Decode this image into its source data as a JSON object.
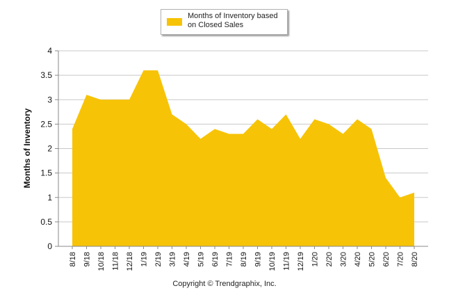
{
  "chart_data": {
    "type": "area",
    "title": "",
    "xlabel": "",
    "ylabel": "Months of Inventory",
    "ylim": [
      0,
      4
    ],
    "yticks": [
      "0",
      "0.5",
      "1",
      "1.5",
      "2",
      "2.5",
      "3",
      "3.5",
      "4"
    ],
    "grid": true,
    "legend_position": "top-center",
    "categories": [
      "8/18",
      "9/18",
      "10/18",
      "11/18",
      "12/18",
      "1/19",
      "2/19",
      "3/19",
      "4/19",
      "5/19",
      "6/19",
      "7/19",
      "8/19",
      "9/19",
      "10/19",
      "11/19",
      "12/19",
      "1/20",
      "2/20",
      "3/20",
      "4/20",
      "5/20",
      "6/20",
      "7/20",
      "8/20"
    ],
    "series": [
      {
        "name": "Months of Inventory based on Closed Sales",
        "color": "#f7c306",
        "values": [
          2.4,
          3.1,
          3.0,
          3.0,
          3.0,
          3.6,
          3.6,
          2.7,
          2.5,
          2.2,
          2.4,
          2.3,
          2.3,
          2.6,
          2.4,
          2.7,
          2.2,
          2.6,
          2.5,
          2.3,
          2.6,
          2.4,
          1.4,
          1.0,
          1.1
        ]
      }
    ]
  },
  "legend": {
    "label": "Months of Inventory based on Closed Sales",
    "color": "#f7c306"
  },
  "footer": {
    "copyright": "Copyright © Trendgraphix, Inc."
  }
}
